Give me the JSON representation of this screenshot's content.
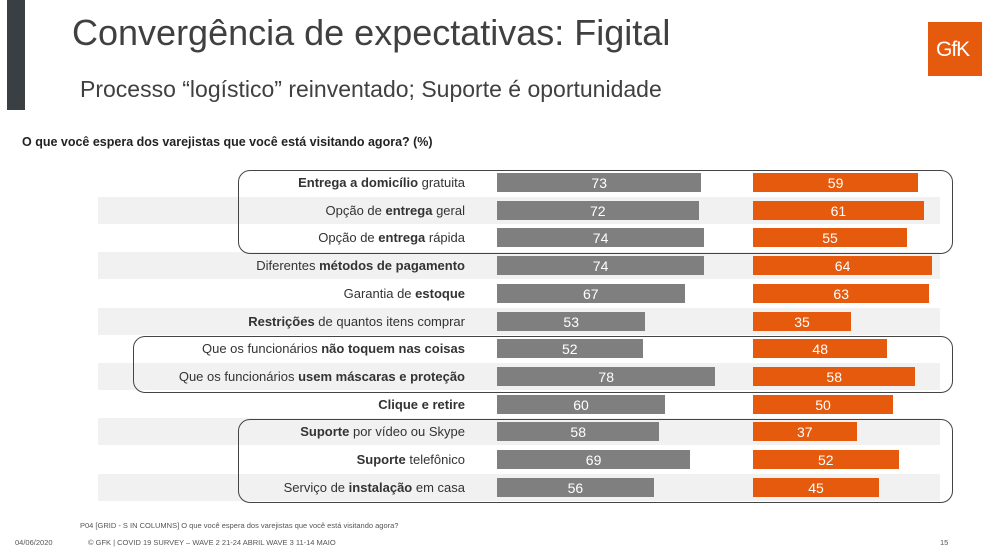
{
  "header": {
    "title": "Convergência de expectativas: Figital",
    "subtitle": "Processo “logístico” reinventado; Suporte é oportunidade",
    "logo": "GfK"
  },
  "colors": {
    "wave2": "#7f7f7f",
    "wave3": "#e55a0c",
    "accent": "#e55a0c"
  },
  "chart_data": {
    "type": "bar",
    "orientation": "horizontal",
    "title": "O que você espera dos varejistas que você está visitando agora? (%)",
    "categories": [
      [
        [
          "Entrega a domicílio",
          true
        ],
        [
          " gratuita",
          false
        ]
      ],
      [
        [
          "Opção de ",
          false
        ],
        [
          "entrega",
          true
        ],
        [
          " geral",
          false
        ]
      ],
      [
        [
          "Opção de ",
          false
        ],
        [
          "entrega",
          true
        ],
        [
          " rápida",
          false
        ]
      ],
      [
        [
          "Diferentes ",
          false
        ],
        [
          "métodos de pagamento",
          true
        ]
      ],
      [
        [
          "Garantia de ",
          false
        ],
        [
          "estoque",
          true
        ]
      ],
      [
        [
          "Restrições",
          true
        ],
        [
          " de quantos itens comprar",
          false
        ]
      ],
      [
        [
          "Que os funcionários ",
          false
        ],
        [
          "não toquem nas coisas",
          true
        ]
      ],
      [
        [
          "Que os funcionários ",
          false
        ],
        [
          "usem máscaras e proteção",
          true
        ]
      ],
      [
        [
          "Clique e retire",
          true
        ]
      ],
      [
        [
          "Suporte",
          true
        ],
        [
          " por vídeo ou Skype",
          false
        ]
      ],
      [
        [
          "Suporte",
          true
        ],
        [
          " telefônico",
          false
        ]
      ],
      [
        [
          "Serviço de ",
          false
        ],
        [
          "instalação",
          true
        ],
        [
          " em casa",
          false
        ]
      ]
    ],
    "series": [
      {
        "values": [
          73,
          72,
          74,
          74,
          67,
          53,
          52,
          78,
          60,
          58,
          69,
          56
        ]
      },
      {
        "values": [
          59,
          61,
          55,
          64,
          63,
          35,
          48,
          58,
          50,
          37,
          52,
          45
        ]
      }
    ],
    "highlight_groups": [
      [
        0,
        2
      ],
      [
        6,
        7
      ],
      [
        9,
        11
      ]
    ],
    "data_labels": true
  },
  "footer": {
    "note": "P04 [GRID - S IN COLUMNS] O que você espera dos varejistas que você está visitando agora?",
    "date": "04/06/2020",
    "source": "© GFK | COVID 19 SURVEY – WAVE 2  21-24 ABRIL  WAVE 3 11-14 MAIO",
    "page": "15"
  }
}
